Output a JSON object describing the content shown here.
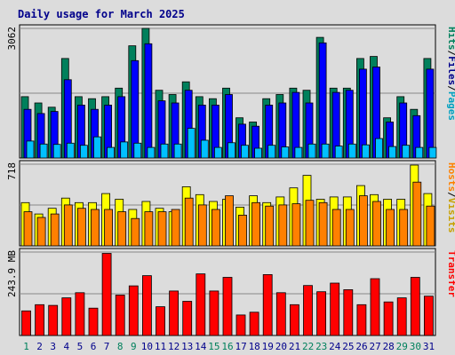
{
  "page": {
    "title": "Daily usage for March 2025"
  },
  "colors": {
    "hits": "#00805c",
    "files": "#0000ff",
    "pages": "#00c0ff",
    "visits": "#ffff00",
    "hosts": "#ff8000",
    "kbytes": "#ff0000",
    "weekday_label": "#00008b",
    "weekend_label": "#00805c",
    "label_slash": "#000000",
    "background": "#dcdcdc",
    "plot_bg": "#dcdcdc"
  },
  "chart_data": [
    {
      "type": "bar",
      "panel": "hits-files-pages",
      "ylabel_max": "3062",
      "ymax": 3062,
      "right_label": {
        "parts": [
          "Hits",
          "Files",
          "Pages"
        ],
        "sep": "/"
      },
      "categories": [
        "1",
        "2",
        "3",
        "4",
        "5",
        "6",
        "7",
        "8",
        "9",
        "10",
        "11",
        "12",
        "13",
        "14",
        "15",
        "16",
        "17",
        "18",
        "19",
        "20",
        "21",
        "22",
        "23",
        "24",
        "25",
        "26",
        "27",
        "28",
        "29",
        "30",
        "31"
      ],
      "series": [
        {
          "name": "Hits",
          "color_key": "hits",
          "values": [
            1450,
            1300,
            1200,
            2350,
            1450,
            1400,
            1450,
            1650,
            2650,
            3062,
            1600,
            1500,
            1800,
            1450,
            1400,
            1650,
            950,
            850,
            1400,
            1500,
            1650,
            1600,
            2850,
            1650,
            1650,
            2350,
            2400,
            950,
            1450,
            1150,
            2350
          ]
        },
        {
          "name": "Files",
          "color_key": "files",
          "values": [
            1150,
            1050,
            1100,
            1850,
            1250,
            1150,
            1250,
            1450,
            2300,
            2700,
            1350,
            1300,
            1600,
            1250,
            1250,
            1500,
            800,
            750,
            1250,
            1300,
            1550,
            1300,
            2720,
            1550,
            1600,
            2100,
            2150,
            850,
            1300,
            1000,
            2100
          ]
        },
        {
          "name": "Pages",
          "color_key": "pages",
          "values": [
            400,
            330,
            320,
            350,
            300,
            500,
            250,
            380,
            350,
            250,
            330,
            330,
            700,
            420,
            250,
            360,
            300,
            230,
            300,
            260,
            250,
            330,
            330,
            280,
            330,
            310,
            460,
            270,
            300,
            250,
            250
          ]
        }
      ]
    },
    {
      "type": "bar",
      "panel": "hosts-visits",
      "ylabel_max": "718",
      "ymax": 718,
      "right_label": {
        "parts": [
          "Hosts",
          "Visits"
        ],
        "sep": "/"
      },
      "categories": [
        "1",
        "2",
        "3",
        "4",
        "5",
        "6",
        "7",
        "8",
        "9",
        "10",
        "11",
        "12",
        "13",
        "14",
        "15",
        "16",
        "17",
        "18",
        "19",
        "20",
        "21",
        "22",
        "23",
        "24",
        "25",
        "26",
        "27",
        "28",
        "29",
        "30",
        "31"
      ],
      "series": [
        {
          "name": "Visits",
          "color_key": "visits",
          "values": [
            380,
            280,
            330,
            420,
            380,
            380,
            460,
            410,
            320,
            390,
            330,
            300,
            520,
            450,
            390,
            410,
            340,
            440,
            380,
            430,
            510,
            620,
            410,
            430,
            430,
            530,
            450,
            410,
            410,
            710,
            460
          ]
        },
        {
          "name": "Hosts",
          "color_key": "hosts",
          "values": [
            300,
            250,
            280,
            360,
            330,
            320,
            320,
            300,
            240,
            300,
            300,
            320,
            420,
            360,
            320,
            440,
            270,
            380,
            350,
            360,
            370,
            400,
            380,
            320,
            320,
            440,
            390,
            320,
            320,
            560,
            350
          ]
        }
      ]
    },
    {
      "type": "bar",
      "panel": "transfer",
      "ylabel_max": "243.9 MB",
      "ymax": 243.9,
      "right_label": {
        "parts": [
          "Transfer"
        ],
        "sep": ""
      },
      "categories": [
        "1",
        "2",
        "3",
        "4",
        "5",
        "6",
        "7",
        "8",
        "9",
        "10",
        "11",
        "12",
        "13",
        "14",
        "15",
        "16",
        "17",
        "18",
        "19",
        "20",
        "21",
        "22",
        "23",
        "24",
        "25",
        "26",
        "27",
        "28",
        "29",
        "30",
        "31"
      ],
      "series": [
        {
          "name": "Transfer",
          "color_key": "kbytes",
          "values": [
            72,
            90,
            88,
            110,
            125,
            80,
            240,
            118,
            145,
            175,
            84,
            130,
            100,
            180,
            130,
            170,
            60,
            68,
            178,
            125,
            90,
            146,
            128,
            153,
            134,
            90,
            166,
            98,
            110,
            170,
            115
          ]
        }
      ]
    }
  ],
  "day_labels": [
    {
      "text": "1",
      "weekend": true
    },
    {
      "text": "2",
      "weekend": false
    },
    {
      "text": "3",
      "weekend": false
    },
    {
      "text": "4",
      "weekend": false
    },
    {
      "text": "5",
      "weekend": false
    },
    {
      "text": "6",
      "weekend": false
    },
    {
      "text": "7",
      "weekend": false
    },
    {
      "text": "8",
      "weekend": true
    },
    {
      "text": "9",
      "weekend": true
    },
    {
      "text": "10",
      "weekend": false
    },
    {
      "text": "11",
      "weekend": false
    },
    {
      "text": "12",
      "weekend": false
    },
    {
      "text": "13",
      "weekend": false
    },
    {
      "text": "14",
      "weekend": false
    },
    {
      "text": "15",
      "weekend": true
    },
    {
      "text": "16",
      "weekend": true
    },
    {
      "text": "17",
      "weekend": false
    },
    {
      "text": "18",
      "weekend": false
    },
    {
      "text": "19",
      "weekend": false
    },
    {
      "text": "20",
      "weekend": false
    },
    {
      "text": "21",
      "weekend": false
    },
    {
      "text": "22",
      "weekend": true
    },
    {
      "text": "23",
      "weekend": true
    },
    {
      "text": "24",
      "weekend": false
    },
    {
      "text": "25",
      "weekend": false
    },
    {
      "text": "26",
      "weekend": false
    },
    {
      "text": "27",
      "weekend": false
    },
    {
      "text": "28",
      "weekend": false
    },
    {
      "text": "29",
      "weekend": true
    },
    {
      "text": "30",
      "weekend": true
    },
    {
      "text": "31",
      "weekend": false
    }
  ]
}
